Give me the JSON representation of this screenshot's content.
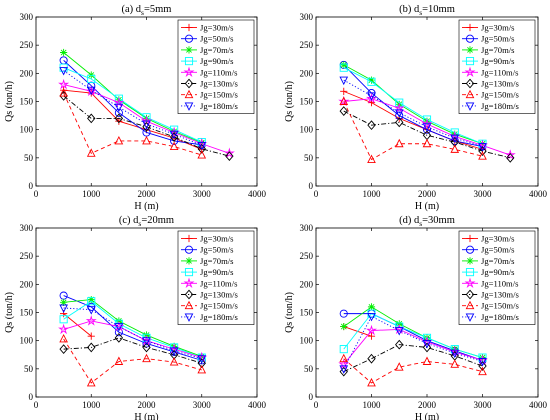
{
  "figure_note": "",
  "chart_data": [
    {
      "type": "line",
      "title_main": "(a) d",
      "title_sub": "s",
      "title_tail": "=5mm",
      "xlabel": "H (m)",
      "ylabel": "Qs (ton/h)",
      "xlim": [
        0,
        4000
      ],
      "ylim": [
        0,
        300
      ],
      "xticks": [
        0,
        1000,
        2000,
        3000,
        4000
      ],
      "yticks": [
        0,
        50,
        100,
        150,
        200,
        250,
        300
      ],
      "grid": false,
      "legend_position": "top-right",
      "series": [
        {
          "name": "Jg=30m/s",
          "x": [
            500,
            1000,
            1500,
            2000,
            2500,
            3000
          ],
          "y": [
            170,
            165,
            115,
            100,
            85,
            65
          ]
        },
        {
          "name": "Jg=50m/s",
          "x": [
            500,
            1000,
            1500,
            2000,
            2500,
            3000
          ],
          "y": [
            223,
            178,
            130,
            95,
            80,
            73
          ]
        },
        {
          "name": "Jg=70m/s",
          "x": [
            500,
            1000,
            1500,
            2000,
            2500,
            3000
          ],
          "y": [
            237,
            197,
            153,
            120,
            97,
            77
          ]
        },
        {
          "name": "Jg=90m/s",
          "x": [
            500,
            1000,
            1500,
            2000,
            2500,
            3000
          ],
          "y": [
            210,
            190,
            155,
            122,
            100,
            78
          ]
        },
        {
          "name": "Jg=110m/s",
          "x": [
            500,
            1000,
            1500,
            2000,
            2500,
            3000,
            3500
          ],
          "y": [
            180,
            168,
            148,
            115,
            95,
            75,
            58
          ]
        },
        {
          "name": "Jg=130m/s",
          "x": [
            500,
            1000,
            1500,
            2000,
            2500,
            3000,
            3500
          ],
          "y": [
            160,
            120,
            120,
            105,
            87,
            66,
            53
          ]
        },
        {
          "name": "Jg=150m/s",
          "x": [
            500,
            1000,
            1500,
            2000,
            2500,
            3000
          ],
          "y": [
            165,
            58,
            80,
            80,
            70,
            55
          ]
        },
        {
          "name": "Jg=180m/s",
          "x": [
            500,
            1000,
            1500,
            2000,
            2500,
            3000
          ],
          "y": [
            205,
            170,
            140,
            110,
            92,
            72
          ]
        }
      ]
    },
    {
      "type": "line",
      "title_main": "(b) d",
      "title_sub": "s",
      "title_tail": "=10mm",
      "xlabel": "H (m)",
      "ylabel": "Qs (ton/h)",
      "xlim": [
        0,
        4000
      ],
      "ylim": [
        0,
        300
      ],
      "xticks": [
        0,
        1000,
        2000,
        3000,
        4000
      ],
      "yticks": [
        0,
        50,
        100,
        150,
        200,
        250,
        300
      ],
      "grid": false,
      "legend_position": "top-right",
      "series": [
        {
          "name": "Jg=30m/s",
          "x": [
            500,
            1000,
            1500,
            2000,
            2500,
            3000
          ],
          "y": [
            168,
            148,
            120,
            100,
            80,
            65
          ]
        },
        {
          "name": "Jg=50m/s",
          "x": [
            500,
            1000,
            1500,
            2000,
            2500,
            3000
          ],
          "y": [
            215,
            165,
            125,
            100,
            80,
            70
          ]
        },
        {
          "name": "Jg=70m/s",
          "x": [
            500,
            1000,
            1500,
            2000,
            2500,
            3000
          ],
          "y": [
            215,
            188,
            145,
            115,
            92,
            75
          ]
        },
        {
          "name": "Jg=90m/s",
          "x": [
            500,
            1000,
            1500,
            2000,
            2500,
            3000
          ],
          "y": [
            210,
            185,
            148,
            118,
            95,
            75
          ]
        },
        {
          "name": "Jg=110m/s",
          "x": [
            500,
            1000,
            1500,
            2000,
            2500,
            3000,
            3500
          ],
          "y": [
            150,
            155,
            138,
            110,
            88,
            72,
            55
          ]
        },
        {
          "name": "Jg=130m/s",
          "x": [
            500,
            1000,
            1500,
            2000,
            2500,
            3000,
            3500
          ],
          "y": [
            133,
            108,
            113,
            90,
            78,
            62,
            50
          ]
        },
        {
          "name": "Jg=150m/s",
          "x": [
            500,
            1000,
            1500,
            2000,
            2500,
            3000
          ],
          "y": [
            150,
            47,
            75,
            75,
            65,
            53
          ]
        },
        {
          "name": "Jg=180m/s",
          "x": [
            500,
            1000,
            1500,
            2000,
            2500,
            3000
          ],
          "y": [
            188,
            160,
            130,
            105,
            85,
            70
          ]
        }
      ]
    },
    {
      "type": "line",
      "title_main": "(c) d",
      "title_sub": "s",
      "title_tail": "=20mm",
      "xlabel": "H (m)",
      "ylabel": "Qs (ton/h)",
      "xlim": [
        0,
        4000
      ],
      "ylim": [
        0,
        300
      ],
      "xticks": [
        0,
        1000,
        2000,
        3000,
        4000
      ],
      "yticks": [
        0,
        50,
        100,
        150,
        200,
        250,
        300
      ],
      "grid": false,
      "legend_position": "top-right",
      "series": [
        {
          "name": "Jg=30m/s",
          "x": [
            500,
            1000
          ],
          "y": [
            148,
            108
          ]
        },
        {
          "name": "Jg=50m/s",
          "x": [
            500,
            1000,
            1500,
            2000,
            2500,
            3000
          ],
          "y": [
            180,
            160,
            115,
            95,
            80,
            65
          ]
        },
        {
          "name": "Jg=70m/s",
          "x": [
            500,
            1000,
            1500,
            2000,
            2500,
            3000
          ],
          "y": [
            168,
            173,
            135,
            110,
            90,
            72
          ]
        },
        {
          "name": "Jg=90m/s",
          "x": [
            500,
            1000,
            1500,
            2000,
            2500,
            3000
          ],
          "y": [
            138,
            170,
            130,
            105,
            88,
            70
          ]
        },
        {
          "name": "Jg=110m/s",
          "x": [
            500,
            1000,
            1500,
            2000,
            2500,
            3000
          ],
          "y": [
            120,
            135,
            125,
            100,
            85,
            70
          ]
        },
        {
          "name": "Jg=130m/s",
          "x": [
            500,
            1000,
            1500,
            2000,
            2500,
            3000
          ],
          "y": [
            85,
            88,
            105,
            88,
            75,
            60
          ]
        },
        {
          "name": "Jg=150m/s",
          "x": [
            500,
            1000,
            1500,
            2000,
            2500,
            3000
          ],
          "y": [
            103,
            25,
            63,
            68,
            62,
            48
          ]
        },
        {
          "name": "Jg=180m/s",
          "x": [
            500,
            1000,
            1500,
            2000,
            2500,
            3000
          ],
          "y": [
            158,
            155,
            125,
            100,
            82,
            68
          ]
        }
      ]
    },
    {
      "type": "line",
      "title_main": "(d) d",
      "title_sub": "s",
      "title_tail": "=30mm",
      "xlabel": "H (m)",
      "ylabel": "Qs (ton/h)",
      "xlim": [
        0,
        4000
      ],
      "ylim": [
        0,
        300
      ],
      "xticks": [
        0,
        1000,
        2000,
        3000,
        4000
      ],
      "yticks": [
        0,
        50,
        100,
        150,
        200,
        250,
        300
      ],
      "grid": false,
      "legend_position": "top-right",
      "series": [
        {
          "name": "Jg=30m/s",
          "x": [
            500,
            1000
          ],
          "y": [
            125,
            108
          ]
        },
        {
          "name": "Jg=50m/s",
          "x": [
            500,
            1000,
            1500,
            2000,
            2500,
            3000
          ],
          "y": [
            148,
            148,
            125,
            100,
            82,
            65
          ]
        },
        {
          "name": "Jg=70m/s",
          "x": [
            500,
            1000,
            1500,
            2000,
            2500,
            3000
          ],
          "y": [
            125,
            160,
            130,
            105,
            85,
            70
          ]
        },
        {
          "name": "Jg=90m/s",
          "x": [
            500,
            1000,
            1500,
            2000,
            2500,
            3000
          ],
          "y": [
            85,
            148,
            125,
            105,
            85,
            70
          ]
        },
        {
          "name": "Jg=110m/s",
          "x": [
            500,
            1000,
            1500,
            2000,
            2500,
            3000
          ],
          "y": [
            58,
            118,
            120,
            98,
            80,
            65
          ]
        },
        {
          "name": "Jg=130m/s",
          "x": [
            500,
            1000,
            1500,
            2000,
            2500,
            3000
          ],
          "y": [
            45,
            68,
            93,
            88,
            73,
            55
          ]
        },
        {
          "name": "Jg=150m/s",
          "x": [
            500,
            1000,
            1500,
            2000,
            2500,
            3000
          ],
          "y": [
            68,
            25,
            53,
            63,
            58,
            45
          ]
        },
        {
          "name": "Jg=180m/s",
          "x": [
            500,
            1000,
            1500,
            2000,
            2500,
            3000
          ],
          "y": [
            50,
            143,
            118,
            95,
            78,
            63
          ]
        }
      ]
    }
  ],
  "series_style": [
    {
      "color": "#ff0000",
      "marker": "plus",
      "dash": "solid"
    },
    {
      "color": "#0000ff",
      "marker": "circle",
      "dash": "solid"
    },
    {
      "color": "#00ee00",
      "marker": "asterisk",
      "dash": "solid"
    },
    {
      "color": "#00ffff",
      "marker": "square",
      "dash": "solid"
    },
    {
      "color": "#ff00ff",
      "marker": "star",
      "dash": "solid"
    },
    {
      "color": "#000000",
      "marker": "diamond",
      "dash": "dashdot"
    },
    {
      "color": "#ff0000",
      "marker": "triangle-up",
      "dash": "dashed"
    },
    {
      "color": "#0000ff",
      "marker": "triangle-down",
      "dash": "dotted"
    }
  ]
}
